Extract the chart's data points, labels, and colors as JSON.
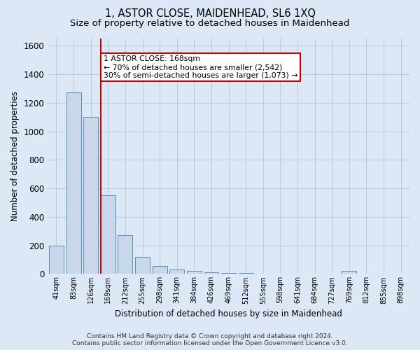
{
  "title": "1, ASTOR CLOSE, MAIDENHEAD, SL6 1XQ",
  "subtitle": "Size of property relative to detached houses in Maidenhead",
  "xlabel": "Distribution of detached houses by size in Maidenhead",
  "ylabel": "Number of detached properties",
  "categories": [
    "41sqm",
    "83sqm",
    "126sqm",
    "169sqm",
    "212sqm",
    "255sqm",
    "298sqm",
    "341sqm",
    "384sqm",
    "426sqm",
    "469sqm",
    "512sqm",
    "555sqm",
    "598sqm",
    "641sqm",
    "684sqm",
    "727sqm",
    "769sqm",
    "812sqm",
    "855sqm",
    "898sqm"
  ],
  "values": [
    197,
    1270,
    1100,
    553,
    270,
    120,
    57,
    30,
    20,
    10,
    8,
    5,
    3,
    2,
    0,
    0,
    0,
    20,
    0,
    0,
    0
  ],
  "bar_color": "#c8d8ea",
  "bar_edge_color": "#5b8db8",
  "marker_color": "#cc0000",
  "annotation_text": "1 ASTOR CLOSE: 168sqm\n← 70% of detached houses are smaller (2,542)\n30% of semi-detached houses are larger (1,073) →",
  "annotation_box_color": "#ffffff",
  "annotation_box_edge": "#cc0000",
  "ylim": [
    0,
    1650
  ],
  "yticks": [
    0,
    200,
    400,
    600,
    800,
    1000,
    1200,
    1400,
    1600
  ],
  "grid_color": "#b8cce0",
  "background_color": "#dce8f5",
  "footer": "Contains HM Land Registry data © Crown copyright and database right 2024.\nContains public sector information licensed under the Open Government Licence v3.0.",
  "title_fontsize": 10.5,
  "subtitle_fontsize": 9.5,
  "marker_bar_index": 3
}
